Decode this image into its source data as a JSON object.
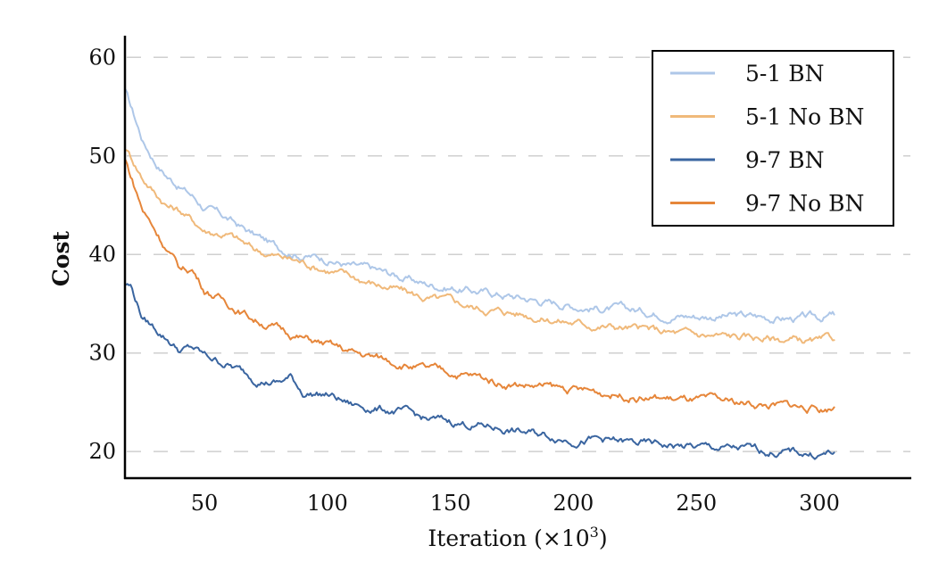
{
  "chart_data": {
    "type": "line",
    "title": "",
    "xlabel": "Iteration (×10³)",
    "xlabel_parts": {
      "main": "Iteration (",
      "times": "×10",
      "sup": "3",
      "close": ")"
    },
    "ylabel": "Cost",
    "xlim": [
      17.7,
      337
    ],
    "ylim": [
      17.3,
      62.2
    ],
    "x_ticks": [
      50,
      100,
      150,
      200,
      250,
      300
    ],
    "x_tick_labels": [
      "50",
      "100",
      "150",
      "200",
      "250",
      "300"
    ],
    "y_ticks": [
      20,
      30,
      40,
      50,
      60
    ],
    "y_tick_labels": [
      "20",
      "30",
      "40",
      "50",
      "60"
    ],
    "grid": "horizontal-dashed",
    "legend_position": "top-right",
    "x": [
      18,
      20,
      25,
      30,
      35,
      40,
      45,
      50,
      60,
      70,
      80,
      85,
      90,
      100,
      110,
      120,
      130,
      140,
      150,
      160,
      170,
      180,
      190,
      200,
      210,
      220,
      230,
      240,
      250,
      260,
      270,
      280,
      290,
      300,
      306
    ],
    "series": [
      {
        "name": "5-1 BN",
        "color": "#aec7e8",
        "values": [
          56.5,
          55,
          51.5,
          49.5,
          48,
          47,
          46,
          44.8,
          43.5,
          42,
          40.7,
          40.4,
          40,
          39.6,
          38.8,
          38.3,
          37.7,
          37,
          36.7,
          36.3,
          36,
          35.6,
          35.2,
          34.9,
          34.6,
          34.4,
          34.2,
          34,
          33.8,
          33.8,
          33.7,
          33.6,
          33.5,
          33.5,
          33.9
        ]
      },
      {
        "name": "5-1 No BN",
        "color": "#f0b97a",
        "values": [
          50.8,
          50,
          47.8,
          46.3,
          45,
          44.5,
          43.5,
          42.5,
          42,
          40.5,
          39.8,
          39.5,
          39.2,
          38.5,
          37.7,
          37,
          36.3,
          35.5,
          35.2,
          34.6,
          34.3,
          34,
          33.5,
          33.1,
          32.8,
          32.6,
          32.3,
          32,
          31.8,
          31.7,
          31.6,
          31.5,
          31.3,
          31,
          31.3
        ]
      },
      {
        "name": "9-7 BN",
        "color": "#3a65a0",
        "values": [
          37,
          36.8,
          33.5,
          32.5,
          31.5,
          30.3,
          30.5,
          29.7,
          28.8,
          27.5,
          27,
          27.5,
          26,
          25.8,
          24.7,
          24.4,
          24,
          23.2,
          23,
          22.7,
          22.4,
          21.9,
          21.6,
          21.3,
          21.2,
          20.9,
          20.7,
          20.6,
          20.4,
          20.3,
          20.2,
          20,
          19.9,
          19.7,
          19.9
        ]
      },
      {
        "name": "9-7 No BN",
        "color": "#e6863a",
        "values": [
          49.5,
          48,
          44.5,
          42.5,
          40.5,
          38.5,
          38.5,
          36.5,
          35,
          33.5,
          32.5,
          32,
          31.5,
          30.8,
          30,
          29.5,
          29,
          28.3,
          28,
          27.6,
          27,
          26.8,
          26.5,
          26.2,
          26,
          25.8,
          25.5,
          25.3,
          25.1,
          25,
          24.9,
          24.7,
          24.6,
          24.3,
          24.5
        ]
      }
    ]
  }
}
